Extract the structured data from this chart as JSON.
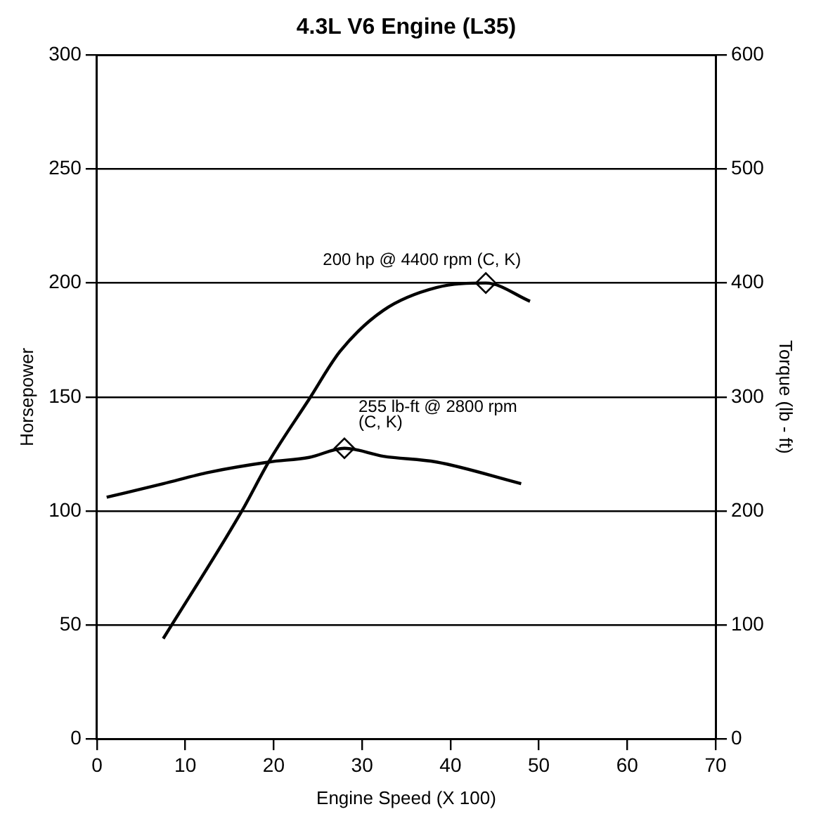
{
  "chart_data": {
    "type": "line",
    "title": "4.3L V6 Engine (L35)",
    "xlabel": "Engine Speed (X 100)",
    "ylabel": "Horsepower",
    "y2label": "Torque (lb - ft)",
    "xlim": [
      0,
      70
    ],
    "xticks": [
      0,
      10,
      20,
      30,
      40,
      50,
      60,
      70
    ],
    "ylim": [
      0,
      300
    ],
    "yticks": [
      0,
      50,
      100,
      150,
      200,
      250,
      300
    ],
    "y2lim": [
      0,
      600
    ],
    "y2ticks": [
      0,
      100,
      200,
      300,
      400,
      500,
      600
    ],
    "grid": "y",
    "legend": false,
    "marker": "none",
    "line_style": "solid",
    "series": [
      {
        "type": "line",
        "color": "#000000",
        "x": [
          7.5,
          16.4,
          19.5,
          24,
          27.5,
          32.4,
          38.4,
          44,
          49
        ],
        "values": [
          44,
          100,
          122,
          149,
          170,
          188,
          198,
          200,
          192
        ]
      },
      {
        "type": "line",
        "axis": "y2",
        "color": "#000000",
        "x": [
          1.1,
          7.5,
          12.7,
          19.5,
          24,
          28,
          32.4,
          38.4,
          48
        ],
        "values": [
          212,
          224,
          234,
          243,
          247,
          255,
          248,
          243,
          224
        ]
      },
      {
        "type": "scatter",
        "marker": "diamond",
        "color": "#000000",
        "x": [
          44
        ],
        "values": [
          200
        ]
      },
      {
        "type": "scatter",
        "axis": "y2",
        "marker": "diamond",
        "color": "#000000",
        "x": [
          28
        ],
        "values": [
          255
        ]
      }
    ],
    "annotations": [
      {
        "text": "200 hp @ 4400 rpm (C, K)",
        "x": 44,
        "y": 200
      },
      {
        "text": "255 lb-ft @ 2800 rpm\n(C, K)",
        "x": 28,
        "y": 127.5
      }
    ]
  }
}
